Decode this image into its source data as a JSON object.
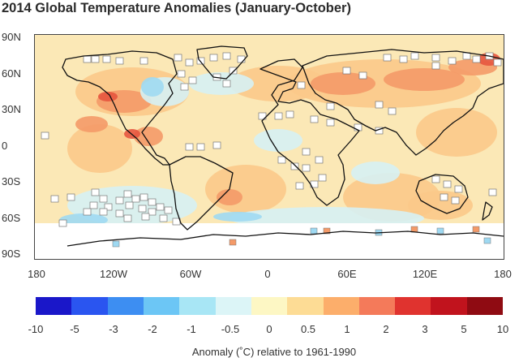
{
  "title": "2014 Global Temperature Anomalies (January-October)",
  "latitude_labels": [
    "90N",
    "60N",
    "30N",
    "0",
    "30S",
    "60S",
    "90S"
  ],
  "longitude_labels": [
    "180",
    "120W",
    "60W",
    "0",
    "60E",
    "120E",
    "180"
  ],
  "colorbar": {
    "colors": [
      "#1a17c9",
      "#2a55f0",
      "#3d8ef2",
      "#6cc6f5",
      "#a8e6f5",
      "#dcf5f7",
      "#fdf7c4",
      "#fddc95",
      "#fcae6b",
      "#f47a5a",
      "#e0332f",
      "#c1131d",
      "#8f0b12"
    ],
    "tick_labels": [
      "-10",
      "-5",
      "-3",
      "-2",
      "-1",
      "-0.5",
      "0",
      "0.5",
      "1",
      "2",
      "3",
      "5",
      "10"
    ],
    "caption": "Anomaly (˚C) relative to 1961-1990"
  },
  "map_colors": {
    "ocean_base": "#fbe8b6",
    "warm": "#fbc98a",
    "hot": "#f49a68",
    "very_hot": "#e7553f",
    "cool": "#d6f1f4",
    "cold": "#9ed9f2",
    "missing": "#ffffff",
    "coast": "#111111"
  }
}
